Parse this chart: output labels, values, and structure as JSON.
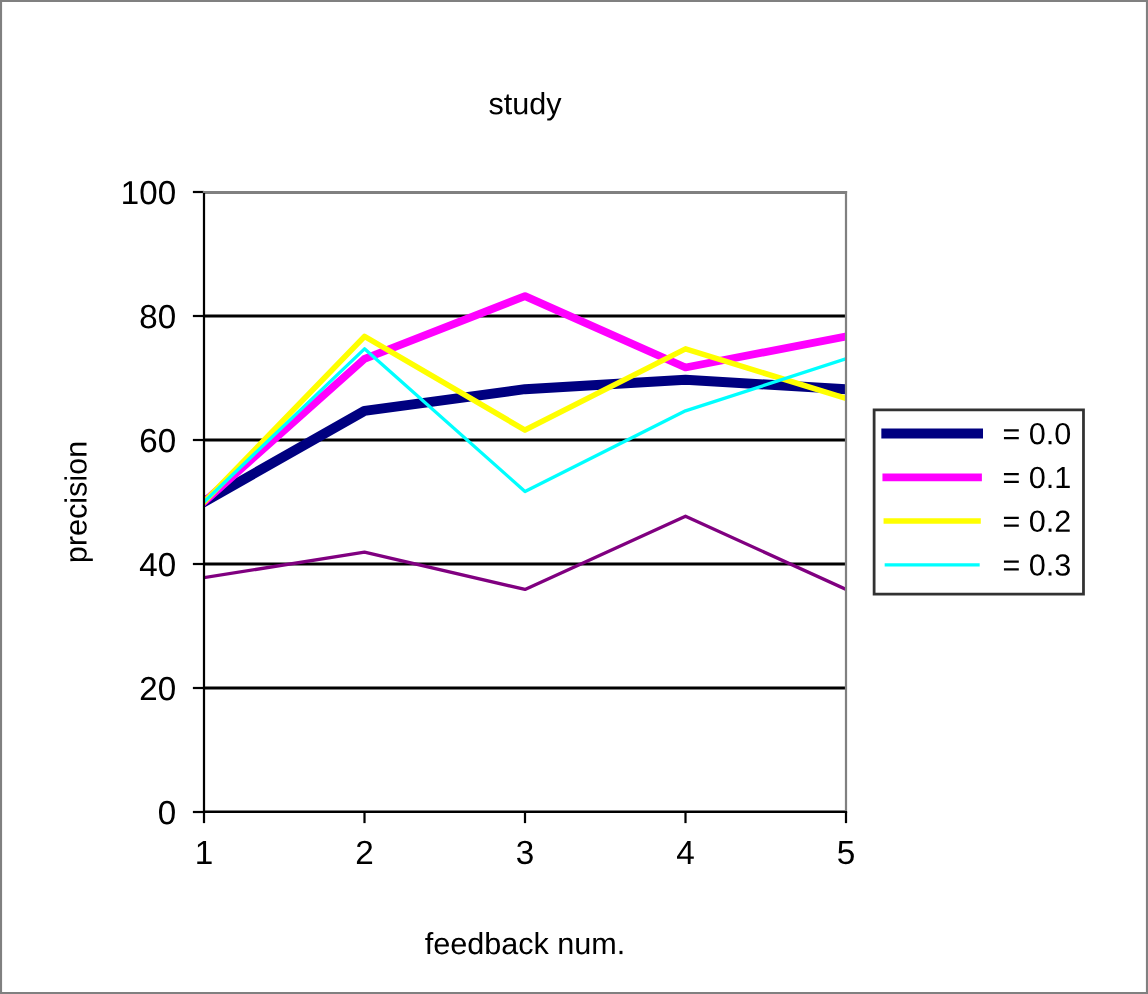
{
  "chart_data": {
    "type": "line",
    "title": "study",
    "xlabel": "feedback num.",
    "ylabel": "precision",
    "x": [
      1,
      2,
      3,
      4,
      5
    ],
    "xlim": [
      1,
      5
    ],
    "xticks": [
      1,
      2,
      3,
      4,
      5
    ],
    "ylim": [
      0,
      100
    ],
    "yticks": [
      0,
      20,
      40,
      60,
      80,
      100
    ],
    "grid": "y",
    "legend": "right",
    "marker": "none",
    "line_style": "solid",
    "series": [
      {
        "name": "= 0.0",
        "color": "#000080",
        "values": [
          50,
          64.7,
          68.2,
          69.7,
          68.2
        ]
      },
      {
        "name": "= 0.1",
        "color": "#ff00ff",
        "values": [
          50,
          73.1,
          83.2,
          71.7,
          76.7
        ]
      },
      {
        "name": "= 0.2",
        "color": "#ffff00",
        "values": [
          50,
          76.7,
          61.6,
          74.7,
          66.7
        ]
      },
      {
        "name": "= 0.3",
        "color": "#00ffff",
        "values": [
          50,
          74.7,
          51.7,
          64.7,
          73.1
        ]
      },
      {
        "color": "#800080",
        "values": [
          37.8,
          41.9,
          35.9,
          47.7,
          35.9
        ]
      }
    ]
  }
}
